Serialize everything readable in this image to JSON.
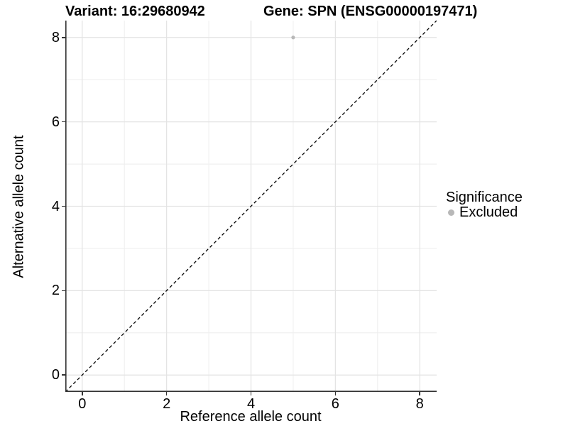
{
  "figure": {
    "title_left": "Variant: 16:29680942",
    "title_right": "Gene: SPN (ENSG00000197471)"
  },
  "chart_data": {
    "type": "scatter",
    "title": "Variant: 16:29680942 — Gene: SPN (ENSG00000197471)",
    "xlabel": "Reference allele count",
    "ylabel": "Alternative allele count",
    "xlim": [
      -0.4,
      8.4
    ],
    "ylim": [
      -0.4,
      8.4
    ],
    "x_major_ticks": [
      0,
      2,
      4,
      6,
      8
    ],
    "x_minor_ticks": [
      1,
      3,
      5,
      7
    ],
    "y_major_ticks": [
      0,
      2,
      4,
      6,
      8
    ],
    "y_minor_ticks": [
      1,
      3,
      5,
      7
    ],
    "grid": "on",
    "series": [
      {
        "name": "Excluded",
        "color": "#b8b8b8",
        "points": [
          {
            "x": 5,
            "y": 8
          }
        ]
      }
    ],
    "reference_line": {
      "type": "identity",
      "slope": 1,
      "intercept": 0,
      "style": "dashed",
      "color": "#000000"
    },
    "legend": {
      "title": "Significance",
      "position": "right",
      "items": [
        {
          "label": "Excluded",
          "color": "#b8b8b8",
          "marker": "circle"
        }
      ]
    }
  },
  "colors": {
    "background": "#ffffff",
    "axis_line": "#333333",
    "grid_major": "#e3e3e3",
    "grid_minor": "#eeeeee",
    "point": "#b8b8b8",
    "text": "#000000"
  }
}
